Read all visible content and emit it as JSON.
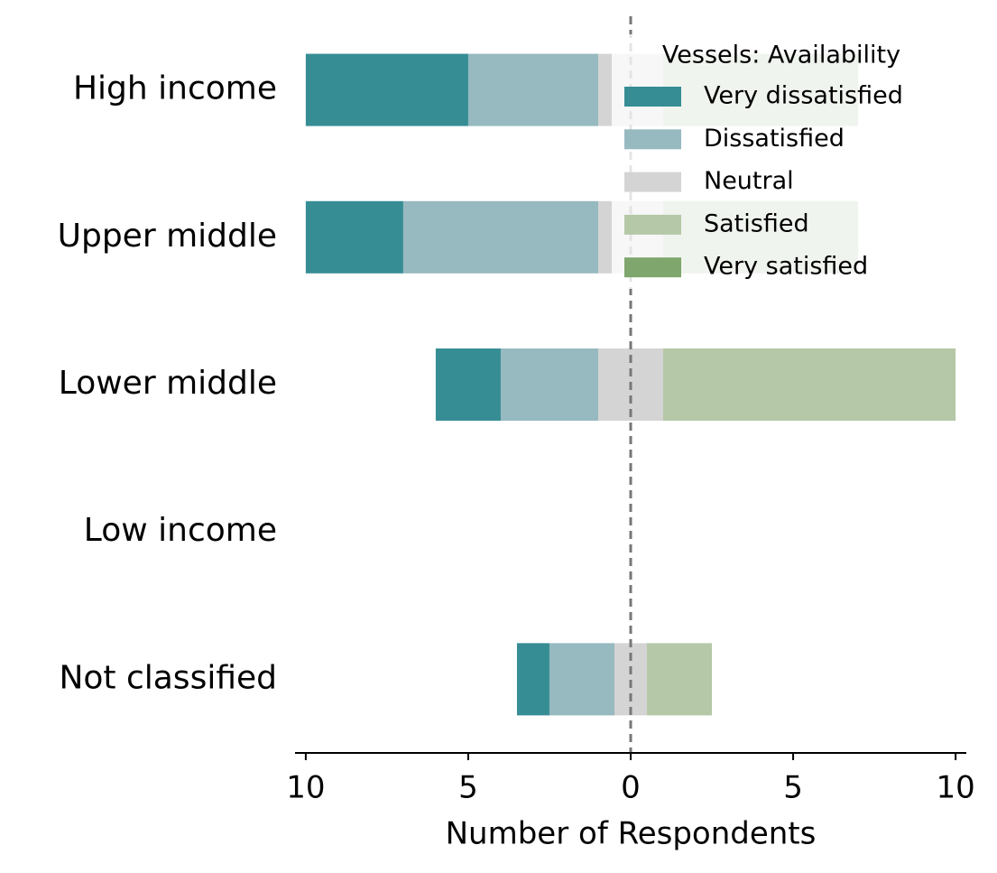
{
  "chart_data": {
    "type": "diverging_bar",
    "x_label": "Number of Respondents",
    "categories": [
      "High income",
      "Upper middle",
      "Lower middle",
      "Low income",
      "Not classified"
    ],
    "neutral_series": "Neutral",
    "series": [
      {
        "name": "Very dissatisfied",
        "color": "#368d94",
        "side": "left",
        "values": [
          5,
          3,
          2,
          0,
          1
        ]
      },
      {
        "name": "Dissatisfied",
        "color": "#97b9c0",
        "side": "left",
        "values": [
          4,
          6,
          3,
          0,
          2
        ]
      },
      {
        "name": "Neutral",
        "color": "#d4d4d4",
        "side": "center",
        "values": [
          2,
          2,
          2,
          0,
          1
        ]
      },
      {
        "name": "Satisfied",
        "color": "#b5c8a8",
        "side": "right",
        "values": [
          6,
          6,
          9,
          0,
          2
        ]
      },
      {
        "name": "Very satisfied",
        "color": "#7fa66c",
        "side": "right",
        "values": [
          0,
          0,
          0,
          0,
          0
        ]
      }
    ],
    "xlim": [
      -10.33,
      10.33
    ],
    "xticks": [
      {
        "value": -10,
        "label": "10"
      },
      {
        "value": -5,
        "label": "5"
      },
      0,
      5,
      10
    ],
    "legend_title": "Vessels: Availability",
    "legend_position": "upper right"
  }
}
